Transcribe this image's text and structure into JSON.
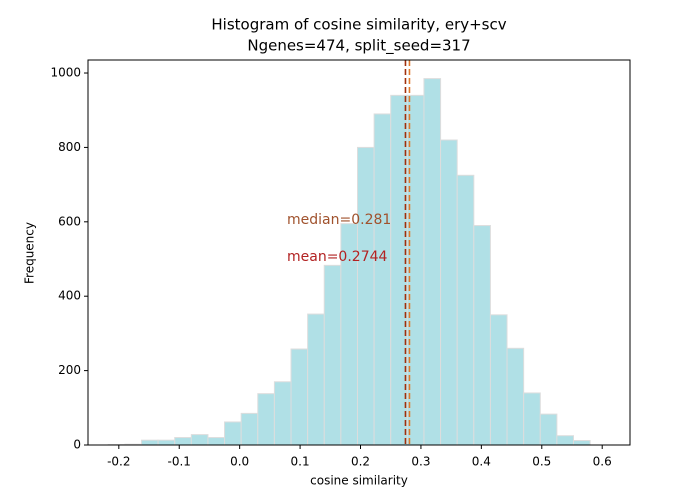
{
  "chart_data": {
    "type": "histogram",
    "title": "Histogram of cosine similarity, ery+scv",
    "subtitle": "Ngenes=474, split_seed=317",
    "x_label": "cosine similarity",
    "y_label": "Frequency",
    "bins": [
      -0.2175,
      -0.19,
      -0.1625,
      -0.135,
      -0.1075,
      -0.08,
      -0.0525,
      -0.025,
      0.0025,
      0.03,
      0.0575,
      0.085,
      0.1125,
      0.14,
      0.1675,
      0.195,
      0.2225,
      0.25,
      0.2775,
      0.305,
      0.3325,
      0.36,
      0.3875,
      0.415,
      0.4425,
      0.47,
      0.4975,
      0.525,
      0.5525,
      0.58
    ],
    "values": [
      1,
      2,
      13,
      13,
      20,
      28,
      20,
      62,
      85,
      138,
      170,
      258,
      352,
      483,
      595,
      800,
      890,
      940,
      940,
      985,
      820,
      725,
      590,
      350,
      260,
      140,
      83,
      25,
      12
    ],
    "color": "#b0e0e6",
    "edgecolor": "#dddddd",
    "xlim": [
      -0.251,
      0.646
    ],
    "ylim": [
      0,
      1035
    ],
    "xticks": [
      -0.2,
      -0.1,
      {
        "value": 0,
        "label": "0.0"
      },
      0.1,
      0.2,
      0.3,
      0.4,
      0.5,
      0.6
    ],
    "yticks": [
      0,
      200,
      400,
      600,
      800,
      1000
    ],
    "vlines": [
      {
        "value": 0.2744,
        "color": "#a0300c"
      },
      {
        "value": 0.281,
        "color": "#e0782a"
      }
    ],
    "annotations": [
      {
        "text": "median=0.281",
        "color": "#a0522d"
      },
      {
        "text": "mean=0.2744",
        "color": "#b22222"
      }
    ]
  }
}
